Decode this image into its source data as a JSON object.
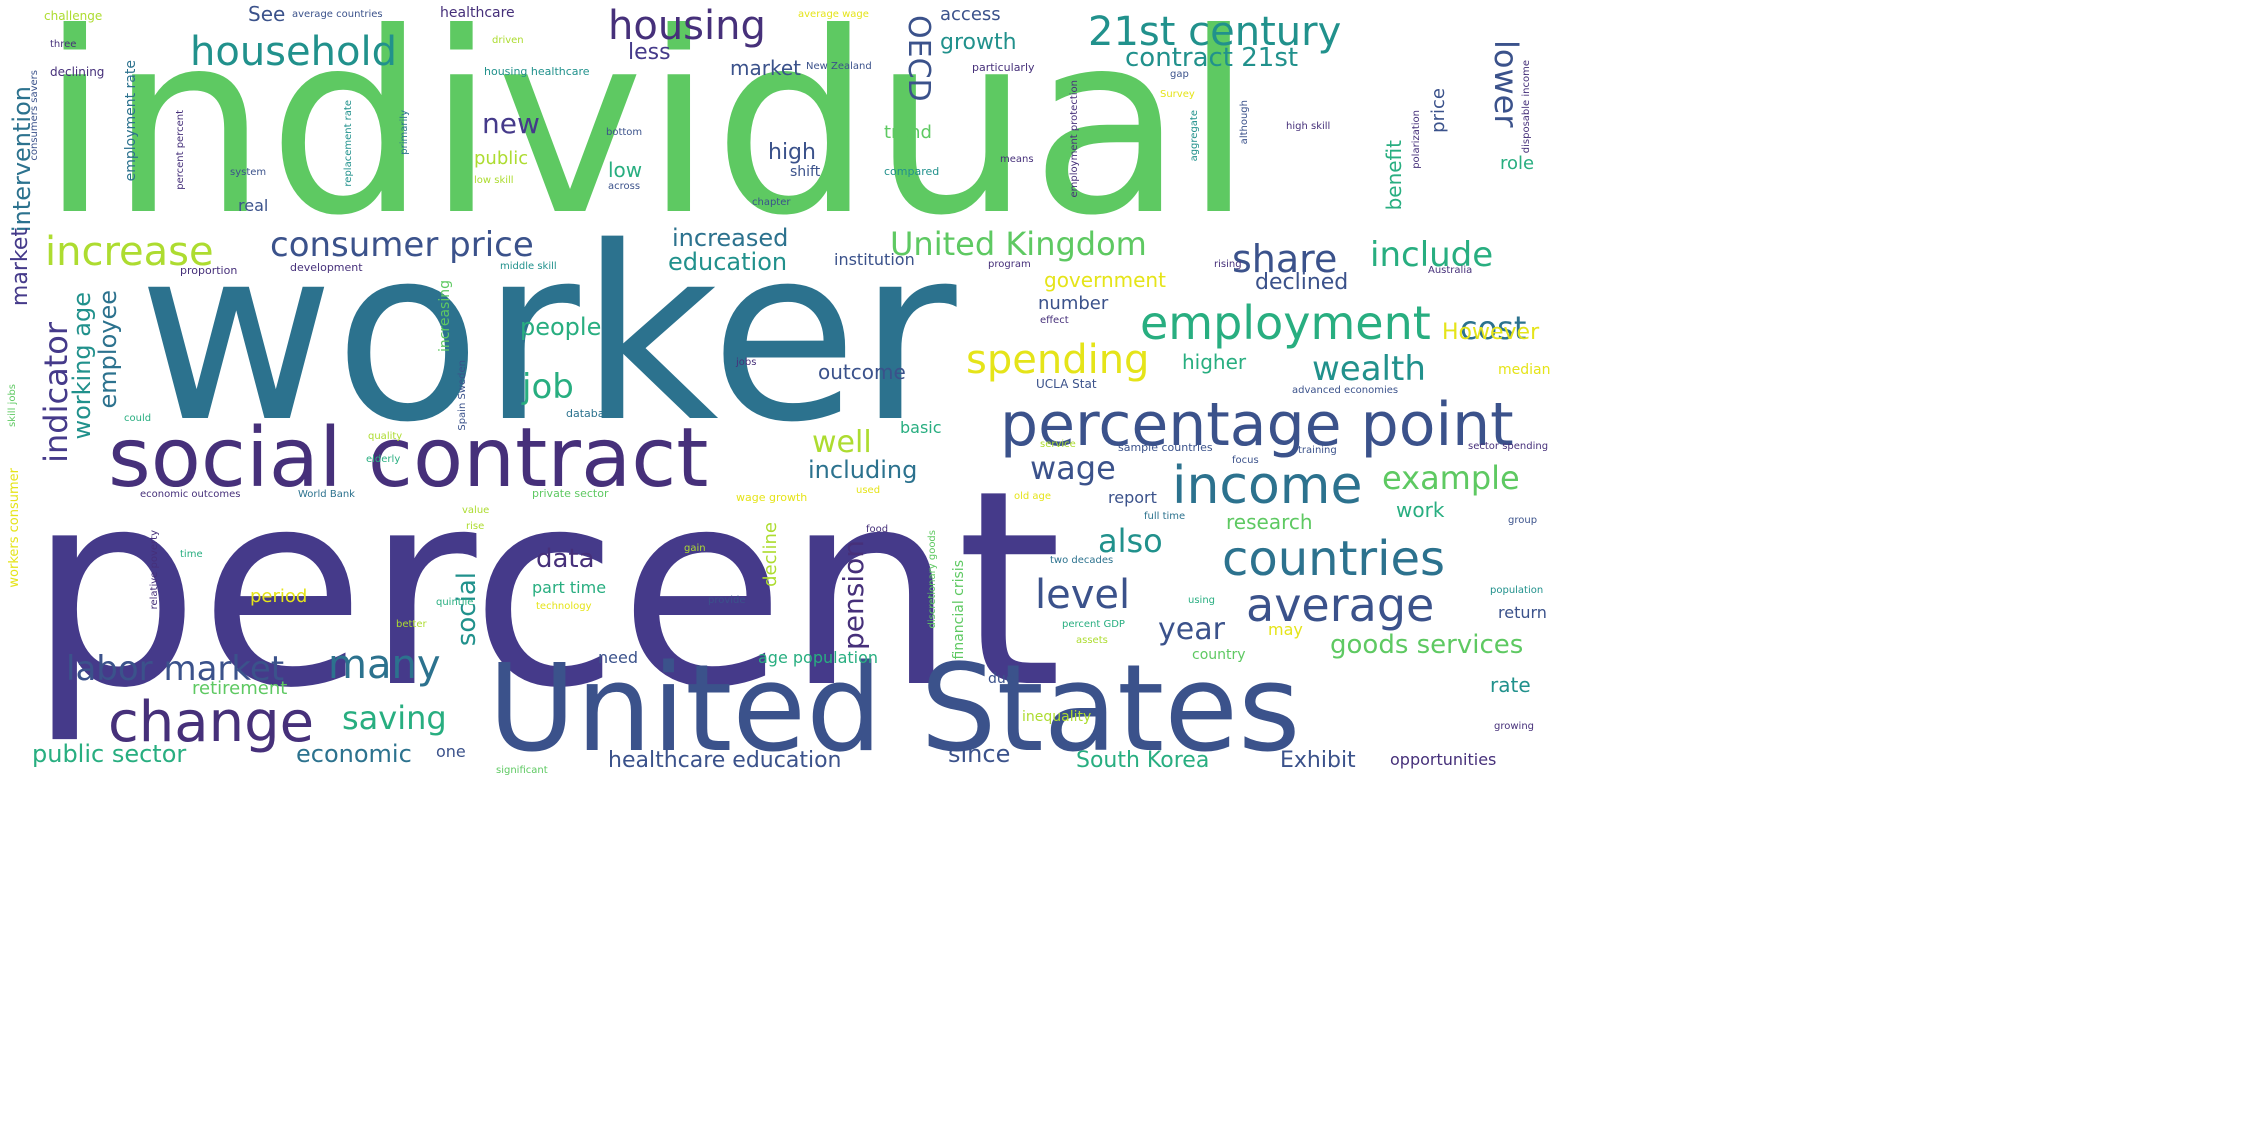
{
  "palette": {
    "dark_purple": "#46307a",
    "indigo": "#453a8a",
    "blue": "#3b528b",
    "teal_blue": "#2c728e",
    "teal": "#21918c",
    "green_teal": "#28ae80",
    "green": "#5ec962",
    "lime": "#addc30",
    "yellow": "#e5e419"
  },
  "words": {
    "individual": "individual",
    "worker": "worker",
    "percent": "percent",
    "united_states": "United States",
    "social_contract": "social contract",
    "percentage_point": "percentage point",
    "change": "change",
    "income": "income",
    "countries": "countries",
    "average": "average",
    "household": "household",
    "housing": "housing",
    "century_21st": "21st century",
    "contract_21st": "contract 21st",
    "oecd": "OECD",
    "growth": "growth",
    "market": "market",
    "less": "less",
    "new": "new",
    "lower": "lower",
    "increase": "increase",
    "consumer_price": "consumer price",
    "united_kingdom": "United Kingdom",
    "share": "share",
    "include": "include",
    "increased": "increased",
    "education": "education",
    "employment": "employment",
    "cost": "cost",
    "spending": "spending",
    "wealth": "wealth",
    "however": "However",
    "job": "job",
    "people": "people",
    "indicator": "indicator",
    "working_age": "working age",
    "employee": "employee",
    "well": "well",
    "including": "including",
    "wage": "wage",
    "example": "example",
    "labor_market": "labor market",
    "many": "many",
    "saving": "saving",
    "economic": "economic",
    "public_sector": "public sector",
    "level": "level",
    "year": "year",
    "also": "also",
    "social": "social",
    "data": "data",
    "pension": "pension",
    "goods_services": "goods services",
    "healthcare_education": "healthcare education",
    "since": "since",
    "south_korea": "South Korea",
    "exhibit": "Exhibit",
    "opportunities": "opportunities",
    "retirement": "retirement",
    "research": "research",
    "work": "work",
    "government": "government",
    "declined": "declined",
    "number": "number",
    "higher": "higher",
    "outcome": "outcome",
    "high": "high",
    "low": "low",
    "intervention": "intervention",
    "market_v": "market",
    "employment_rate": "employment rate",
    "benefit": "benefit",
    "price": "price",
    "period": "period",
    "part_time": "part time",
    "decline": "decline",
    "age_population": "age population",
    "need": "need",
    "may": "may",
    "rate": "rate",
    "return": "return",
    "country": "country",
    "one": "one",
    "see": "See",
    "access": "access",
    "healthcare": "healthcare",
    "public": "public",
    "shift": "shift",
    "real": "real",
    "trend": "trend",
    "basic": "basic",
    "institution": "institution",
    "report": "report",
    "due": "due",
    "inequality": "inequality",
    "financial_crisis": "financial crisis",
    "increasing": "increasing",
    "role": "role",
    "median": "median",
    "challenge": "challenge",
    "average_countries": "average countries",
    "average_wage": "average wage",
    "three": "three",
    "driven": "driven",
    "declining": "declining",
    "housing_healthcare": "housing healthcare",
    "new_zealand": "New Zealand",
    "particularly": "particularly",
    "gap": "gap",
    "survey": "Survey",
    "bottom": "bottom",
    "high_skill": "high skill",
    "low_skill": "low skill",
    "system": "system",
    "primarily": "primarily",
    "compared": "compared",
    "chapter": "chapter",
    "across": "across",
    "means": "means",
    "proportion": "proportion",
    "development": "development",
    "middle_skill": "middle skill",
    "program": "program",
    "rising": "rising",
    "australia": "Australia",
    "effect": "effect",
    "quality": "quality",
    "elderly": "elderly",
    "database": "database",
    "economic_outcomes": "economic outcomes",
    "world_bank": "World Bank",
    "private_sector": "private sector",
    "wage_growth": "wage growth",
    "old_age": "old age",
    "full_time": "full time",
    "sample_countries": "sample countries",
    "training": "training",
    "service": "service",
    "focus": "focus",
    "sector_spending": "sector spending",
    "group": "group",
    "value": "value",
    "rise": "rise",
    "gain": "gain",
    "provide": "provide",
    "population": "population",
    "two_decades": "two decades",
    "using": "using",
    "percent_gdp": "percent GDP",
    "assets": "assets",
    "time": "time",
    "relative_poverty": "relative poverty",
    "quintile": "quintile",
    "better": "better",
    "technology": "technology",
    "significant": "significant",
    "growing": "growing",
    "advanced_economies": "advanced economies",
    "could": "could",
    "workers_consumer": "workers consumer",
    "skill_jobs": "skill jobs",
    "consumers_savers": "consumers savers",
    "percent_percent": "percent percent",
    "replacement_rate": "replacement rate",
    "discretionary_goods": "discretionary goods",
    "employment_protection": "employment protection",
    "disposable_income": "disposable income",
    "aggregate": "aggregate",
    "although": "although",
    "polarization": "polarization",
    "spain_sweden": "Spain Sweden",
    "ucla_stat": "UCLA Stat",
    "used": "used",
    "food": "food",
    "jobs": "jobs"
  }
}
